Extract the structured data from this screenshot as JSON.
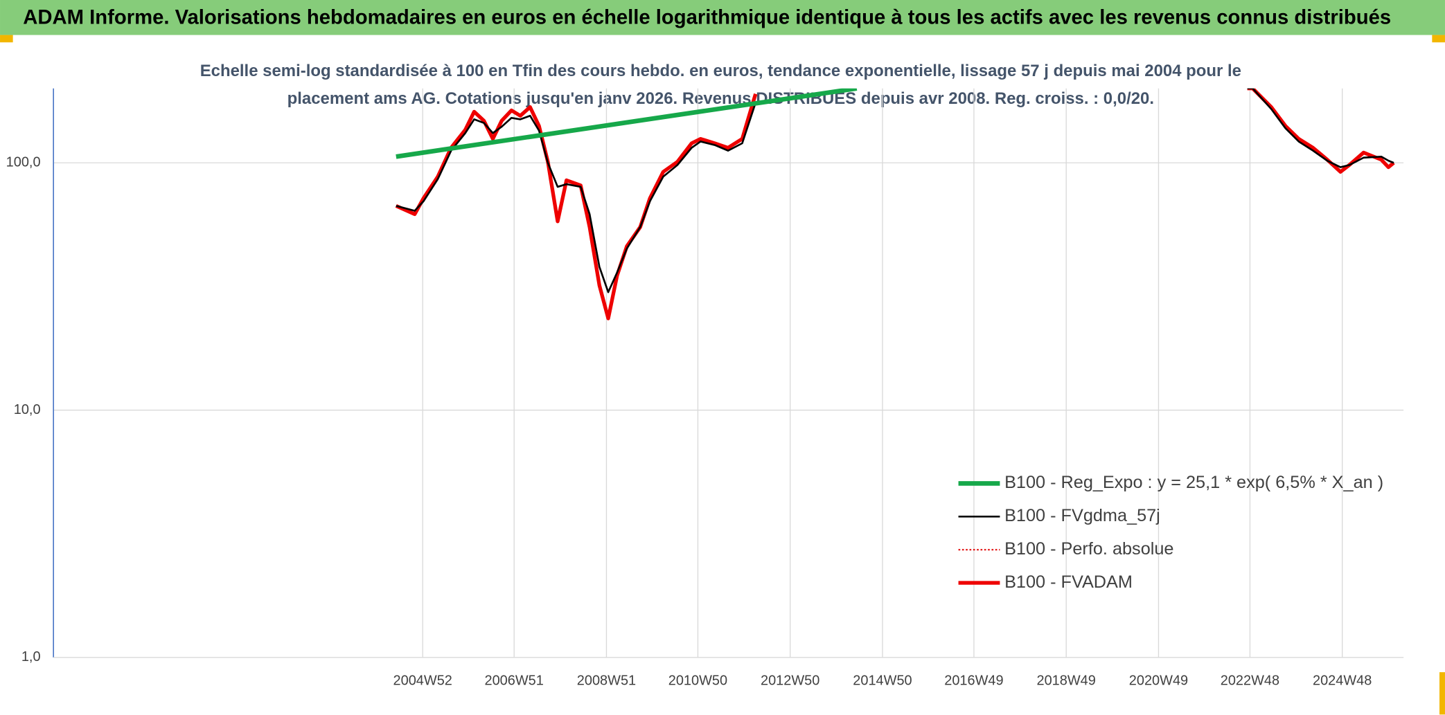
{
  "chart_data": {
    "type": "line",
    "title": "ADAM Informe. Valorisations hebdomadaires en euros en échelle logarithmique identique à tous les actifs avec les revenus connus distribués",
    "subtitle": [
      "Echelle semi-log standardisée à 100 en Tfin des cours hebdo. en euros, tendance exponentielle, lissage 57 j depuis mai 2004 pour le",
      "placement ams AG. Cotations jusqu'en janv 2026. Revenus DISTRIBUES depuis avr 2008. Reg. croiss. : 0,0/20."
    ],
    "log_scale": true,
    "grid": true,
    "legend": "lower right",
    "xlim": [
      "1996W52",
      "2026W13"
    ],
    "xticks": [
      "2004W52",
      "2006W51",
      "2008W51",
      "2010W50",
      "2012W50",
      "2014W50",
      "2016W49",
      "2018W49",
      "2020W49",
      "2022W48",
      "2024W48"
    ],
    "ylim": [
      1,
      200
    ],
    "yticks": [
      {
        "value": 1,
        "label": "1,0"
      },
      {
        "value": 10,
        "label": "10,0"
      },
      {
        "value": 100,
        "label": "100,0"
      }
    ],
    "series": [
      {
        "name": "B100 - Reg_Expo : y = 25,1 * exp( 6,5% *  X_an )",
        "color": "#16a84a",
        "style": "solid",
        "x": [
          "2004W22",
          "2014W21"
        ],
        "values": [
          106,
          200
        ]
      },
      {
        "name": "B100 - FVgdma_57j",
        "color": "#000000",
        "style": "solid",
        "x": [
          "2004W22",
          "2004W43",
          "2005W01",
          "2005W17",
          "2005W32",
          "2005W48",
          "2006W06",
          "2006W17",
          "2006W27",
          "2006W37",
          "2006W48",
          "2007W06",
          "2007W17",
          "2007W27",
          "2007W37",
          "2007W48",
          "2008W06",
          "2008W22",
          "2008W32",
          "2008W43",
          "2009W01",
          "2009W11",
          "2009W22",
          "2009W37",
          "2009W48",
          "2010W11",
          "2010W27",
          "2010W43",
          "2011W01",
          "2011W17",
          "2011W32",
          "2011W48",
          "2012W11",
          "2017W01",
          "2022W45",
          "2022W51",
          "2023W20",
          "2023W36",
          "2023W51",
          "2024W15",
          "2024W31",
          "2024W46",
          "2025W04",
          "2025W20",
          "2025W40",
          "2025W48",
          "2026W02"
        ],
        "values": [
          67,
          64,
          70,
          86,
          112,
          132,
          150,
          145,
          132,
          140,
          152,
          150,
          155,
          135,
          100,
          80,
          82,
          80,
          62,
          38,
          30,
          36,
          45,
          55,
          70,
          88,
          98,
          115,
          122,
          118,
          112,
          120,
          175,
          null,
          200,
          200,
          165,
          138,
          122,
          112,
          102,
          96,
          98,
          105,
          106,
          102,
          100
        ]
      },
      {
        "name": "B100 - Perfo. absolue",
        "color": "#e00000",
        "style": "dotted",
        "x": [
          "2004W22",
          "2026W02"
        ],
        "values": [
          null,
          null
        ]
      },
      {
        "name": "B100 - FVADAM",
        "color": "#ee0000",
        "style": "solid",
        "x": [
          "2004W22",
          "2004W43",
          "2005W01",
          "2005W17",
          "2005W32",
          "2005W48",
          "2006W06",
          "2006W17",
          "2006W27",
          "2006W37",
          "2006W48",
          "2007W06",
          "2007W17",
          "2007W27",
          "2007W37",
          "2007W48",
          "2008W06",
          "2008W22",
          "2008W32",
          "2008W43",
          "2009W01",
          "2009W11",
          "2009W22",
          "2009W37",
          "2009W48",
          "2010W11",
          "2010W27",
          "2010W43",
          "2011W01",
          "2011W17",
          "2011W32",
          "2011W48",
          "2012W11",
          "2017W01",
          "2022W45",
          "2022W51",
          "2023W20",
          "2023W36",
          "2023W51",
          "2024W15",
          "2024W31",
          "2024W46",
          "2025W04",
          "2025W20",
          "2025W40",
          "2025W48",
          "2026W02"
        ],
        "values": [
          67,
          62,
          72,
          88,
          115,
          136,
          161,
          148,
          125,
          148,
          163,
          155,
          168,
          141,
          101,
          58,
          85,
          81,
          55,
          32,
          23.5,
          35,
          46,
          55,
          72,
          92,
          101,
          120,
          125,
          120,
          115,
          125,
          190,
          null,
          200,
          200,
          168,
          141,
          125,
          115,
          103,
          92,
          98,
          110,
          103,
          96,
          100
        ]
      }
    ]
  }
}
